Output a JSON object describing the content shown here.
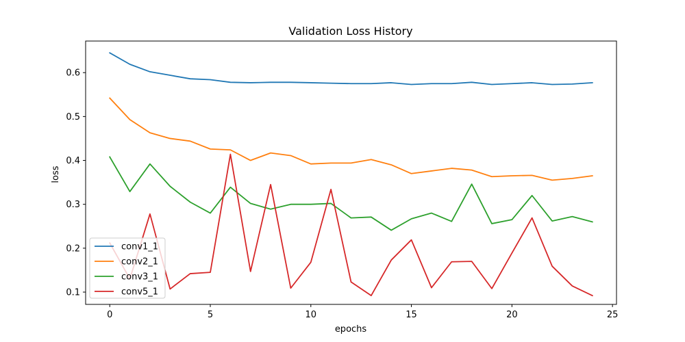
{
  "chart_data": {
    "type": "line",
    "title": "Validation Loss History",
    "xlabel": "epochs",
    "ylabel": "loss",
    "xlim": [
      -1.2,
      25.2
    ],
    "ylim": [
      0.072,
      0.672
    ],
    "xticks": [
      0,
      5,
      10,
      15,
      20,
      25
    ],
    "yticks": [
      0.1,
      0.2,
      0.3,
      0.4,
      0.5,
      0.6
    ],
    "ytick_labels": [
      "0.1",
      "0.2",
      "0.3",
      "0.4",
      "0.5",
      "0.6"
    ],
    "grid": false,
    "legend_position": "lower-left",
    "x": [
      0,
      1,
      2,
      3,
      4,
      5,
      6,
      7,
      8,
      9,
      10,
      11,
      12,
      13,
      14,
      15,
      16,
      17,
      18,
      19,
      20,
      21,
      22,
      23,
      24
    ],
    "series": [
      {
        "name": "conv1_1",
        "color": "#1f77b4",
        "values": [
          0.645,
          0.619,
          0.602,
          0.594,
          0.586,
          0.584,
          0.578,
          0.577,
          0.578,
          0.578,
          0.577,
          0.576,
          0.575,
          0.575,
          0.577,
          0.573,
          0.575,
          0.575,
          0.578,
          0.573,
          0.575,
          0.577,
          0.573,
          0.574,
          0.577
        ]
      },
      {
        "name": "conv2_1",
        "color": "#ff7f0e",
        "values": [
          0.542,
          0.493,
          0.463,
          0.45,
          0.444,
          0.426,
          0.424,
          0.4,
          0.417,
          0.411,
          0.392,
          0.394,
          0.394,
          0.402,
          0.39,
          0.37,
          0.376,
          0.382,
          0.378,
          0.363,
          0.365,
          0.366,
          0.355,
          0.359,
          0.365
        ]
      },
      {
        "name": "conv3_1",
        "color": "#2ca02c",
        "values": [
          0.408,
          0.329,
          0.392,
          0.341,
          0.305,
          0.28,
          0.339,
          0.302,
          0.289,
          0.3,
          0.3,
          0.302,
          0.269,
          0.271,
          0.241,
          0.267,
          0.28,
          0.261,
          0.346,
          0.256,
          0.265,
          0.32,
          0.262,
          0.272,
          0.26
        ]
      },
      {
        "name": "conv5_1",
        "color": "#d62728",
        "values": [
          0.212,
          0.13,
          0.278,
          0.107,
          0.142,
          0.145,
          0.414,
          0.147,
          0.345,
          0.109,
          0.168,
          0.334,
          0.123,
          0.092,
          0.173,
          0.219,
          0.11,
          0.169,
          0.17,
          0.108,
          0.189,
          0.269,
          0.159,
          0.114,
          0.092
        ]
      }
    ]
  }
}
